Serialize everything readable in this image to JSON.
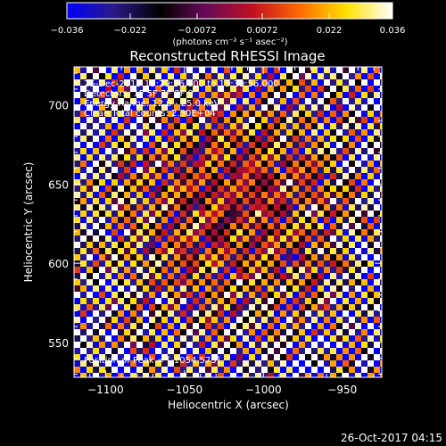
{
  "chart_data": {
    "type": "heatmap",
    "title": "Reconstructed RHESSI Image",
    "xlabel": "Heliocentric X (arcsec)",
    "ylabel": "Heliocentric Y (arcsec)",
    "xlim": [
      -1120,
      -925
    ],
    "ylim": [
      528,
      724
    ],
    "x_ticks": [
      -1100,
      -1050,
      -1000,
      -950
    ],
    "y_ticks": [
      550,
      600,
      650,
      700
    ],
    "x_tick_labels": [
      "−1100",
      "−1050",
      "−1000",
      "−950"
    ],
    "y_tick_labels": [
      "550",
      "600",
      "650",
      "700"
    ],
    "colorbar": {
      "min": -0.036,
      "max": 0.036,
      "ticks": [
        -0.036,
        -0.022,
        -0.0072,
        0.0072,
        0.022,
        0.036
      ],
      "tick_labels": [
        "−0.036",
        "−0.022",
        "−0.0072",
        "0.0072",
        "0.022",
        "0.036"
      ],
      "units_label": "(photons cm⁻² s⁻¹ asec⁻²)",
      "colormap_stops": [
        "#0000ff",
        "#2a1a8a",
        "#000000",
        "#6a0a5a",
        "#c01020",
        "#ff6a00",
        "#ffe000",
        "#ffffff"
      ]
    },
    "pattern": "checkerboard-noise",
    "info_lines": [
      "25-Dec-2015 15:29:56.000 to 15:39:56.000",
      "Detectors: 1F 5F 7F 8F 9",
      "Energy Range: 12.0 - 25.0 keV",
      "Clean    Total counts: 2.30E+04"
    ],
    "peak_text": "Position of Peak = [-1054,573]",
    "footer_date": "26-Oct-2017 04:15"
  }
}
